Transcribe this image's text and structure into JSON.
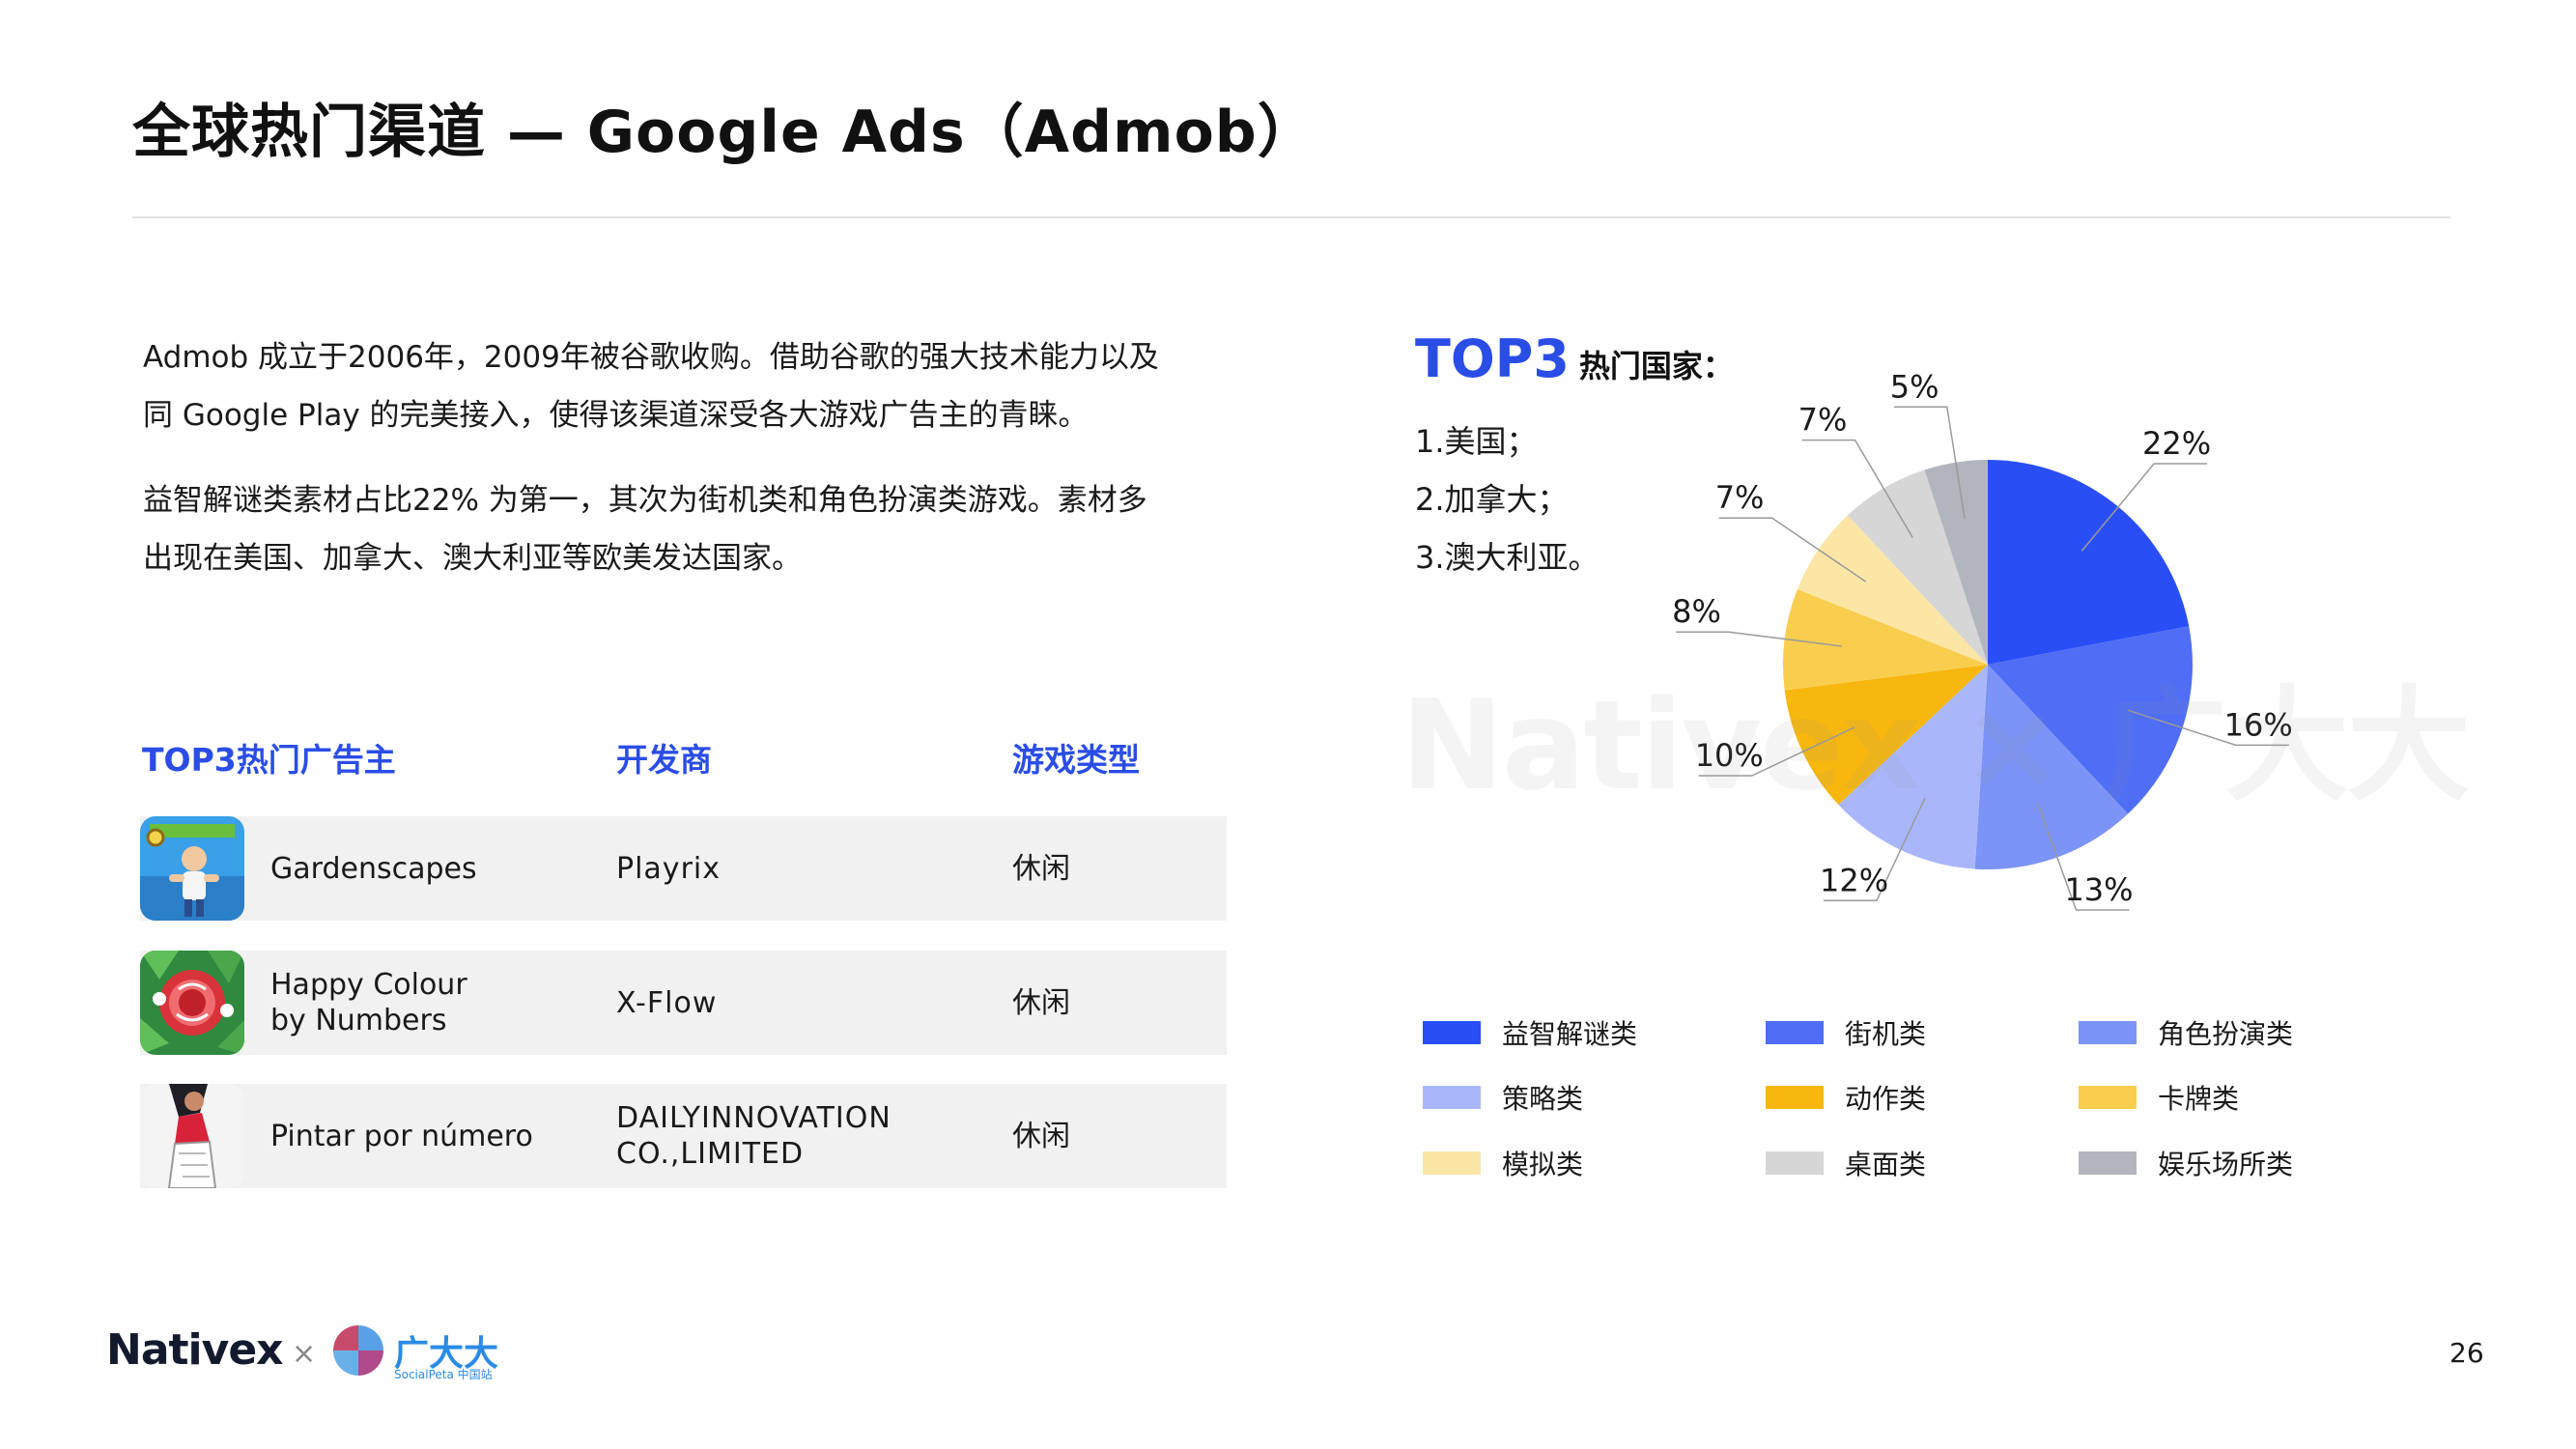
{
  "title": "全球热门渠道 — Google Ads（Admob）",
  "intro": {
    "para1_line1": "Admob 成立于2006年，2009年被谷歌收购。借助谷歌的强大技术能力以及",
    "para1_line2": "同 Google Play 的完美接入，使得该渠道深受各大游戏广告主的青睐。",
    "para2_line1": "益智解谜类素材占比22% 为第一，其次为街机类和角色扮演类游戏。素材多",
    "para2_line2": "出现在美国、加拿大、澳大利亚等欧美发达国家。"
  },
  "table": {
    "headers": [
      "TOP3热门广告主",
      "开发商",
      "游戏类型"
    ],
    "rows": [
      {
        "app": "Gardenscapes",
        "developer": "Playrix",
        "type": "休闲",
        "icon": "gardenscapes-icon"
      },
      {
        "app": "Happy Colour\nby Numbers",
        "developer": "X-Flow",
        "type": "休闲",
        "icon": "happy-colour-icon"
      },
      {
        "app": "Pintar por número",
        "developer": "DAILYINNOVATION\nCO.,LIMITED",
        "type": "休闲",
        "icon": "pintar-icon"
      }
    ]
  },
  "top3_countries": {
    "heading_big": "TOP3",
    "heading_small": "热门国家：",
    "items": [
      "1.美国；",
      "2.加拿大；",
      "3.澳大利亚。"
    ]
  },
  "watermark": "Nativex × 广大大",
  "chart_data": {
    "type": "pie",
    "categories": [
      "益智解谜类",
      "街机类",
      "角色扮演类",
      "策略类",
      "动作类",
      "卡牌类",
      "模拟类",
      "桌面类",
      "娱乐场所类"
    ],
    "values": [
      22,
      16,
      13,
      12,
      10,
      8,
      7,
      7,
      5
    ],
    "labels": [
      "22%",
      "16%",
      "13%",
      "12%",
      "10%",
      "8%",
      "7%",
      "7%",
      "5%"
    ],
    "colors": [
      "#2a4ef6",
      "#4f6ef5",
      "#7c93f7",
      "#a9b7fa",
      "#f7b70f",
      "#f9ce4e",
      "#fce6a6",
      "#d6d6d6",
      "#b2b5be"
    ],
    "legend_position": "bottom"
  },
  "footer": {
    "logo": "Nativex",
    "separator": "×",
    "brand": "广大大",
    "brand_sub": "SocialPeta 中国站",
    "page_number": "26"
  }
}
